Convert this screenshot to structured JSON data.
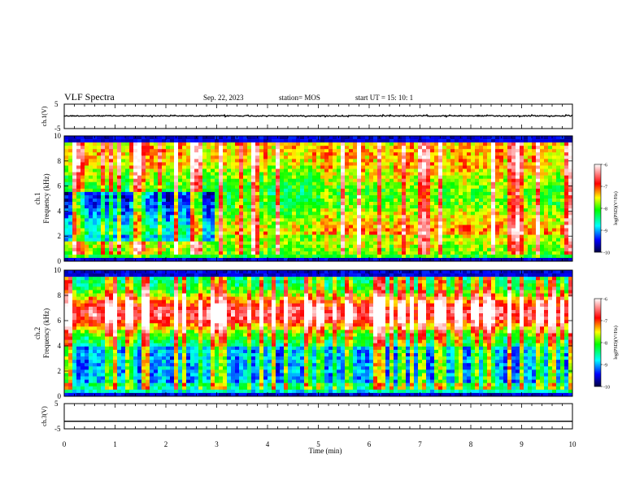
{
  "header": {
    "title": "VLF Spectra",
    "date": "Sep. 22, 2023",
    "station": "station= MOS",
    "start": "start  UT =   15: 10: 1"
  },
  "colors": {
    "background": "#ffffff",
    "axis": "#000000",
    "colormap": [
      "#000040",
      "#0000ff",
      "#00ffff",
      "#00ff00",
      "#ffff00",
      "#ff0000",
      "#ffffff"
    ]
  },
  "chart_data": [
    {
      "id": "ch1-waveform",
      "type": "line",
      "ylabel": "ch.1(V)",
      "ylim": [
        -5,
        5
      ],
      "yticks": [
        "5",
        "-5"
      ],
      "xlim": [
        0,
        10
      ],
      "description_level": 0.2
    },
    {
      "id": "ch1-spectrogram",
      "type": "heatmap",
      "ylabel": "ch.1",
      "ylabel2": "Frequency (kHz)",
      "ylim": [
        0,
        10
      ],
      "yticks": [
        "0",
        "2",
        "4",
        "6",
        "8",
        "10"
      ],
      "xlim": [
        0,
        10
      ],
      "colorbar": {
        "label": "log(PSD)(V²/Hz)",
        "range": [
          -10,
          -6
        ],
        "ticks": [
          "-6",
          "-7",
          "-8",
          "-9",
          "-10"
        ]
      }
    },
    {
      "id": "ch2-spectrogram",
      "type": "heatmap",
      "ylabel": "ch.2",
      "ylabel2": "Frequency (kHz)",
      "ylim": [
        0,
        10
      ],
      "yticks": [
        "0",
        "2",
        "4",
        "6",
        "8",
        "10"
      ],
      "xlim": [
        0,
        10
      ],
      "colorbar": {
        "label": "log(PSD)(V²/Hz)",
        "range": [
          -10,
          -6
        ],
        "ticks": [
          "-6",
          "-7",
          "-8",
          "-9",
          "-10"
        ]
      }
    },
    {
      "id": "ch3-waveform",
      "type": "line",
      "ylabel": "ch.3(V)",
      "ylim": [
        -5,
        5
      ],
      "yticks": [
        "5",
        "-5"
      ],
      "xlim": [
        0,
        10
      ],
      "description_level": -2
    }
  ],
  "xaxis": {
    "label": "Time (min)",
    "range": [
      0,
      10
    ],
    "ticks": [
      "0",
      "1",
      "2",
      "3",
      "4",
      "5",
      "6",
      "7",
      "8",
      "9",
      "10"
    ]
  }
}
